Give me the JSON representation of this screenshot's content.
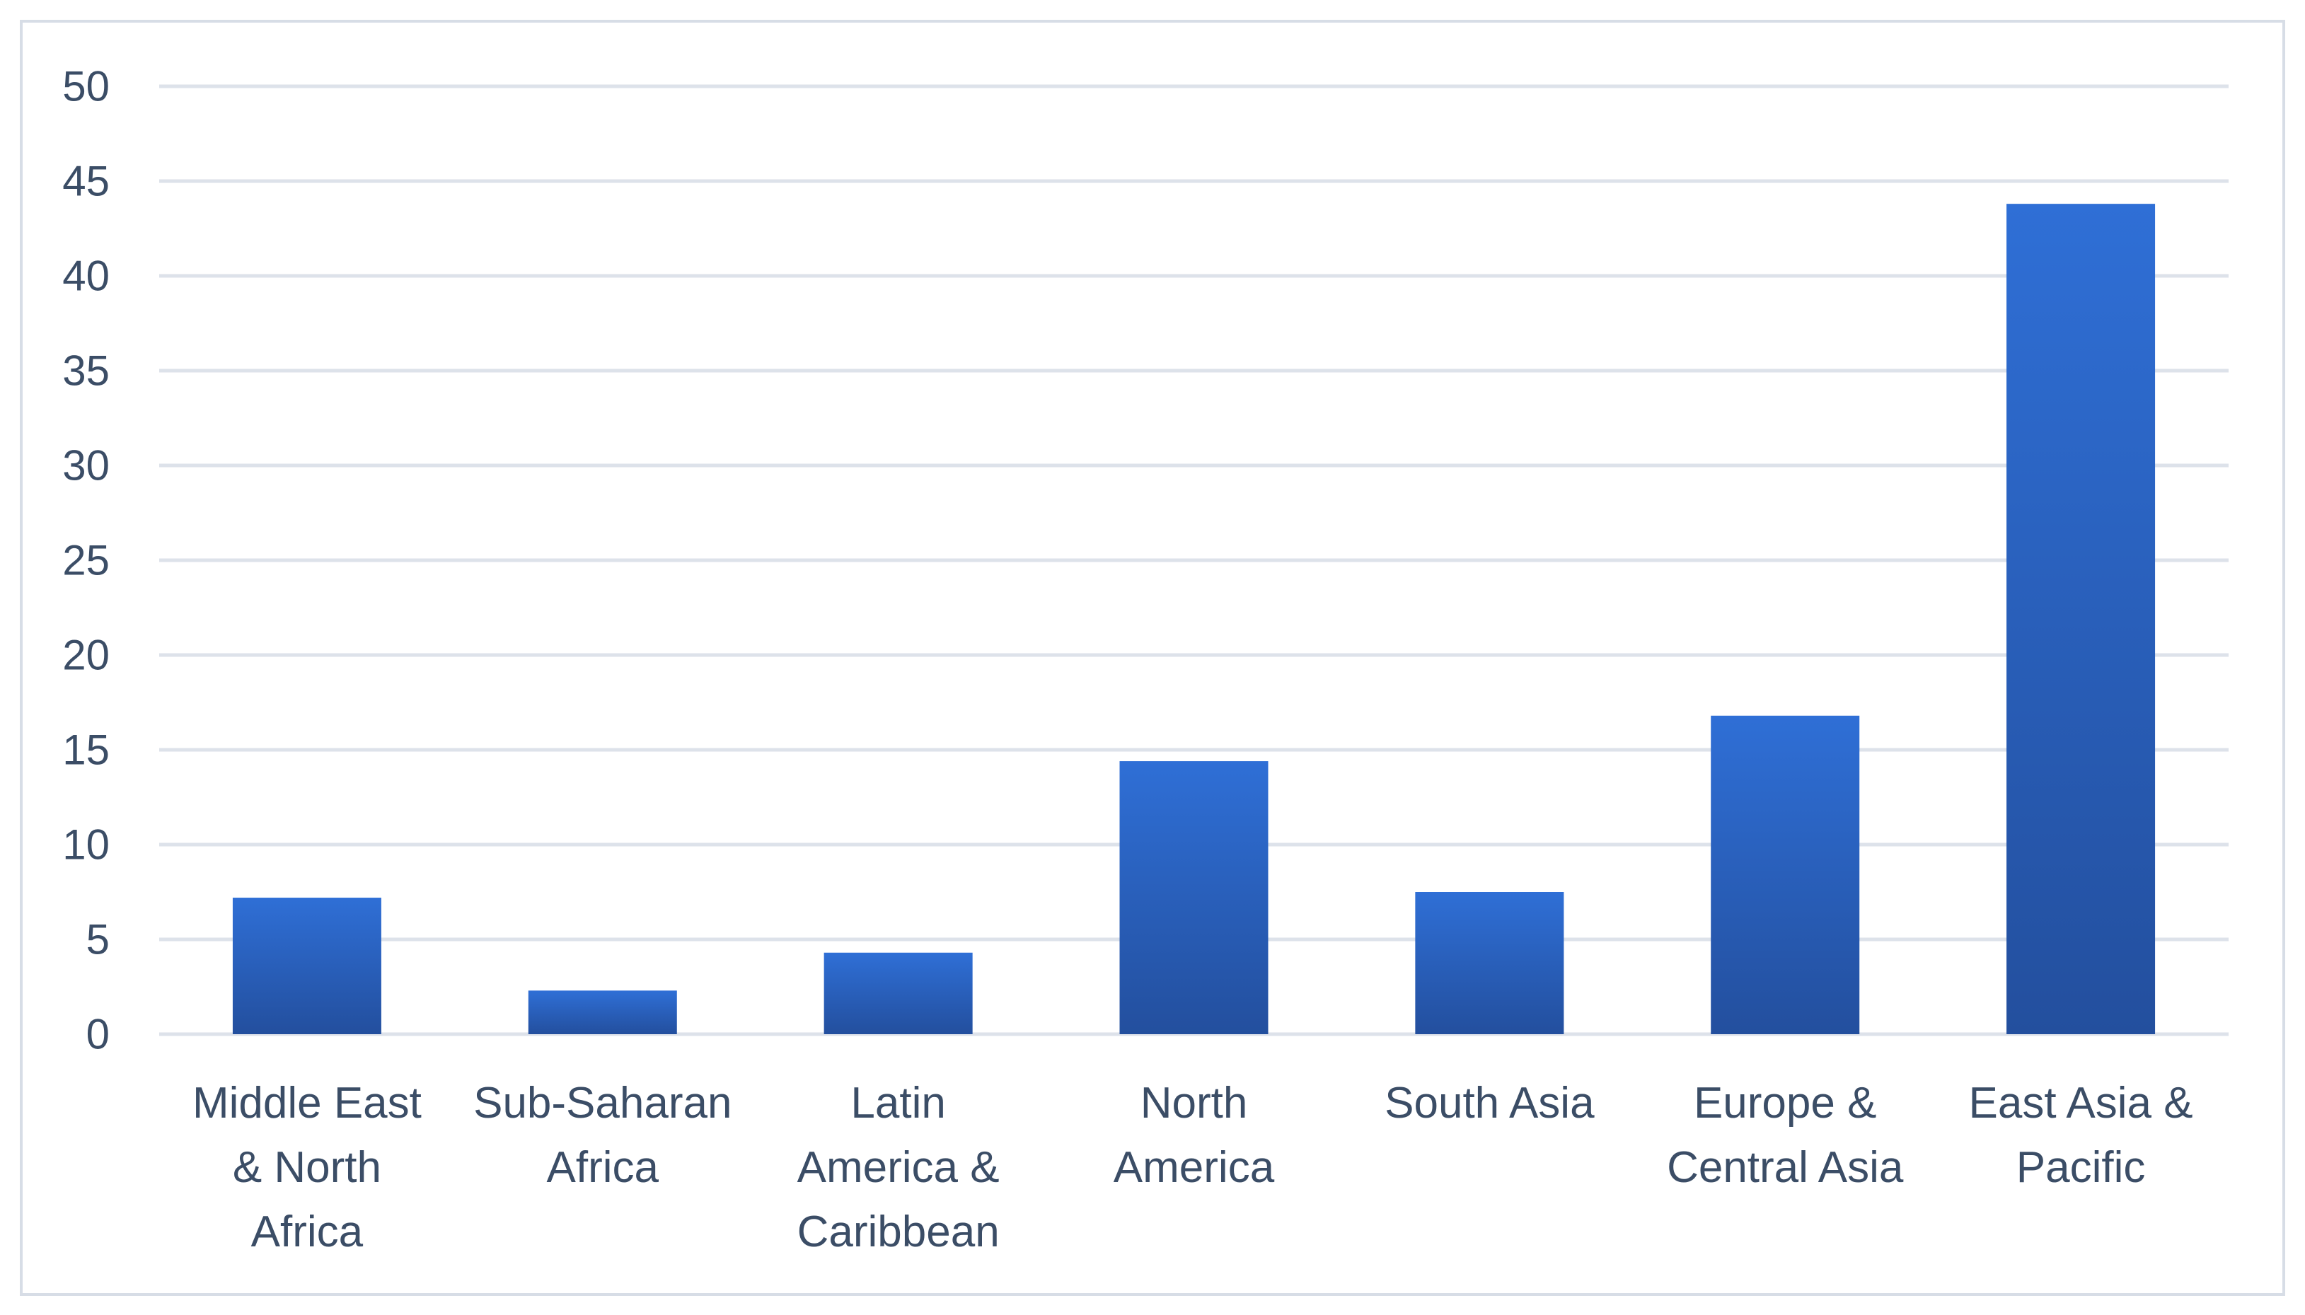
{
  "chart_data": {
    "type": "bar",
    "title": "",
    "xlabel": "",
    "ylabel": "",
    "ylim": [
      0,
      50
    ],
    "yticks": [
      0,
      5,
      10,
      15,
      20,
      25,
      30,
      35,
      40,
      45,
      50
    ],
    "grid": true,
    "legend": "none",
    "categories": [
      [
        "Middle East",
        "& North",
        "Africa"
      ],
      [
        "Sub-Saharan",
        "Africa"
      ],
      [
        "Latin",
        "America &",
        "Caribbean"
      ],
      [
        "North",
        "America"
      ],
      [
        "South Asia"
      ],
      [
        "Europe &",
        "Central Asia"
      ],
      [
        "East Asia &",
        "Pacific"
      ]
    ],
    "values": [
      7.2,
      2.3,
      4.3,
      14.4,
      7.5,
      16.8,
      43.8
    ],
    "colors": {
      "bar_top": "#2f6fd6",
      "bar_bottom": "#234f9e",
      "grid": "#dde2ea",
      "text": "#3b4d66",
      "border": "#d7dde6"
    }
  }
}
